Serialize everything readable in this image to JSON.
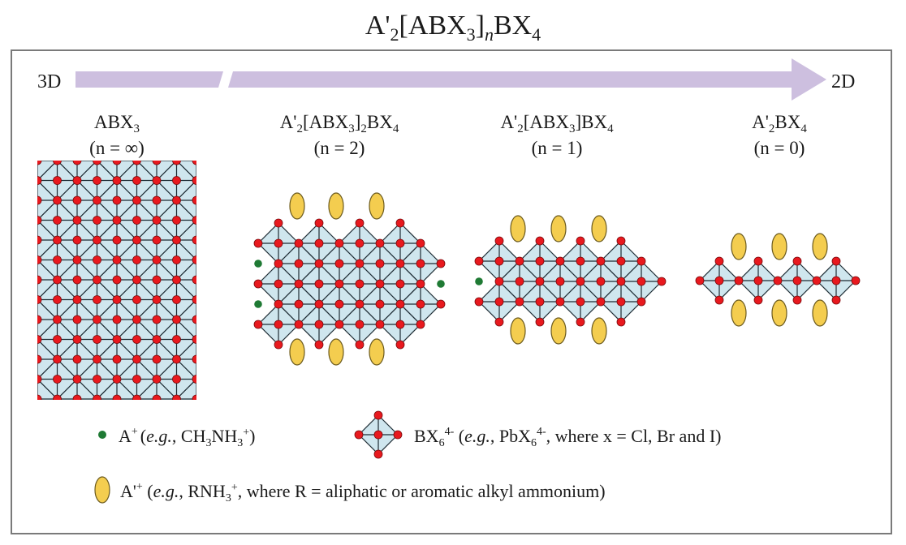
{
  "title": {
    "prefix": "A'",
    "sub_2": "2",
    "mid": "[ABX",
    "sub_3": "3",
    "close": "]",
    "sub_n": "n",
    "suffix": "BX",
    "sub_4": "4"
  },
  "arrow": {
    "left_label": "3D",
    "right_label": "2D"
  },
  "structures": [
    {
      "formula_main": "ABX",
      "formula_sub": "3",
      "formula_rest": "",
      "formula_sub2": "",
      "formula_rest2": "",
      "formula_sub3": "",
      "n_label": "(n = ∞)"
    },
    {
      "formula_main": "A'",
      "formula_sub": "2",
      "formula_rest": "[ABX",
      "formula_sub2": "3",
      "formula_rest2": "]",
      "formula_sub3": "2",
      "formula_rest3": "BX",
      "formula_sub4": "4",
      "n_label": "(n = 2)"
    },
    {
      "formula_main": "A'",
      "formula_sub": "2",
      "formula_rest": "[ABX",
      "formula_sub2": "3",
      "formula_rest2": "]BX",
      "formula_sub3": "4",
      "n_label": "(n = 1)"
    },
    {
      "formula_main": "A'",
      "formula_sub": "2",
      "formula_rest": "BX",
      "formula_sub2": "4",
      "n_label": "(n = 0)"
    }
  ],
  "legend": {
    "a_cation": {
      "symbol": "A",
      "sup": "+",
      "open": "(",
      "eg": "e.g.",
      "comma": ", CH",
      "sub1": "3",
      "nh": "NH",
      "sub2": "3",
      "sup2": "+",
      "close": ")"
    },
    "octahedron": {
      "symbol": "BX",
      "sub": "6",
      "sup": "4-",
      "open": " (",
      "eg": "e.g.",
      "comma": ", PbX",
      "sub2": "6",
      "sup2": "4-",
      "rest": ", where x = Cl, Br and I)"
    },
    "organic": {
      "symbol": "A'",
      "sup": "+",
      "open": " (",
      "eg": "e.g.",
      "comma": ", RNH",
      "sub": "3",
      "sup2": "+",
      "rest": ", where R = aliphatic or aromatic alkyl ammonium)"
    }
  },
  "colors": {
    "octahedron_fill": "#cfe6ee",
    "x_anion": "#e8191e",
    "a_cation": "#1f7a34",
    "organic_cation": "#f4cd4f",
    "arrow": "#cdbfdf",
    "frame": "#777777"
  }
}
